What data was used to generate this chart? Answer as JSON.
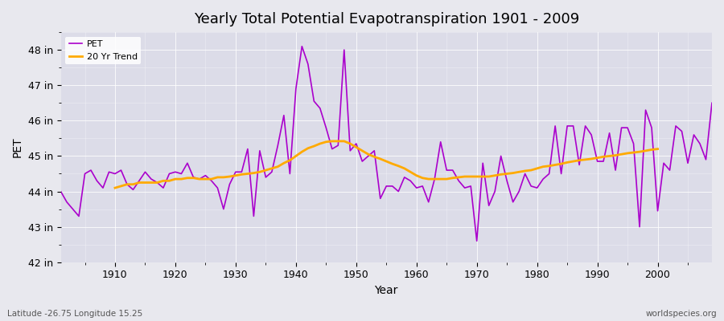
{
  "title": "Yearly Total Potential Evapotranspiration 1901 - 2009",
  "xlabel": "Year",
  "ylabel": "PET",
  "bg_color": "#e8e8ee",
  "plot_bg_color": "#dcdce8",
  "pet_color": "#aa00cc",
  "trend_color": "#ffaa00",
  "ylim": [
    42,
    48.5
  ],
  "yticks": [
    42,
    43,
    44,
    45,
    46,
    47,
    48
  ],
  "ytick_labels": [
    "42 in",
    "43 in",
    "44 in",
    "45 in",
    "46 in",
    "47 in",
    "48 in"
  ],
  "footer_left": "Latitude -26.75 Longitude 15.25",
  "footer_right": "worldspecies.org",
  "years": [
    1901,
    1902,
    1903,
    1904,
    1905,
    1906,
    1907,
    1908,
    1909,
    1910,
    1911,
    1912,
    1913,
    1914,
    1915,
    1916,
    1917,
    1918,
    1919,
    1920,
    1921,
    1922,
    1923,
    1924,
    1925,
    1926,
    1927,
    1928,
    1929,
    1930,
    1931,
    1932,
    1933,
    1934,
    1935,
    1936,
    1937,
    1938,
    1939,
    1940,
    1941,
    1942,
    1943,
    1944,
    1945,
    1946,
    1947,
    1948,
    1949,
    1950,
    1951,
    1952,
    1953,
    1954,
    1955,
    1956,
    1957,
    1958,
    1959,
    1960,
    1961,
    1962,
    1963,
    1964,
    1965,
    1966,
    1967,
    1968,
    1969,
    1970,
    1971,
    1972,
    1973,
    1974,
    1975,
    1976,
    1977,
    1978,
    1979,
    1980,
    1981,
    1982,
    1983,
    1984,
    1985,
    1986,
    1987,
    1988,
    1989,
    1990,
    1991,
    1992,
    1993,
    1994,
    1995,
    1996,
    1997,
    1998,
    1999,
    2000,
    2001,
    2002,
    2003,
    2004,
    2005,
    2006,
    2007,
    2008,
    2009
  ],
  "pet": [
    44.0,
    43.7,
    43.5,
    43.3,
    44.5,
    44.6,
    44.3,
    44.1,
    44.55,
    44.5,
    44.6,
    44.2,
    44.05,
    44.3,
    44.55,
    44.35,
    44.25,
    44.1,
    44.5,
    44.55,
    44.5,
    44.8,
    44.4,
    44.35,
    44.45,
    44.3,
    44.1,
    43.5,
    44.2,
    44.55,
    44.55,
    45.2,
    43.3,
    45.15,
    44.4,
    44.55,
    45.3,
    46.15,
    44.5,
    46.9,
    48.1,
    47.6,
    46.55,
    46.35,
    45.8,
    45.2,
    45.3,
    48.0,
    45.15,
    45.35,
    44.85,
    45.0,
    45.15,
    43.8,
    44.15,
    44.15,
    44.0,
    44.4,
    44.3,
    44.1,
    44.15,
    43.7,
    44.35,
    45.4,
    44.6,
    44.6,
    44.3,
    44.1,
    44.15,
    42.6,
    44.8,
    43.6,
    44.0,
    45.0,
    44.3,
    43.7,
    44.0,
    44.5,
    44.15,
    44.1,
    44.35,
    44.5,
    45.85,
    44.5,
    45.85,
    45.85,
    44.75,
    45.85,
    45.6,
    44.85,
    44.85,
    45.65,
    44.6,
    45.8,
    45.8,
    45.35,
    43.0,
    46.3,
    45.8,
    43.45,
    44.8,
    44.6,
    45.85,
    45.7,
    44.8,
    45.6,
    45.35,
    44.9,
    46.5
  ],
  "trend": [
    null,
    null,
    null,
    null,
    null,
    null,
    null,
    null,
    null,
    44.1,
    44.15,
    44.2,
    44.2,
    44.25,
    44.25,
    44.25,
    44.25,
    44.3,
    44.3,
    44.35,
    44.35,
    44.38,
    44.38,
    44.35,
    44.35,
    44.35,
    44.4,
    44.4,
    44.42,
    44.45,
    44.48,
    44.5,
    44.52,
    44.55,
    44.6,
    44.65,
    44.7,
    44.8,
    44.88,
    45.0,
    45.12,
    45.22,
    45.28,
    45.35,
    45.4,
    45.42,
    45.42,
    45.42,
    45.35,
    45.25,
    45.15,
    45.05,
    44.98,
    44.92,
    44.85,
    44.78,
    44.72,
    44.65,
    44.55,
    44.45,
    44.38,
    44.35,
    44.35,
    44.35,
    44.35,
    44.38,
    44.4,
    44.42,
    44.42,
    44.42,
    44.42,
    44.42,
    44.45,
    44.48,
    44.5,
    44.52,
    44.55,
    44.58,
    44.6,
    44.65,
    44.7,
    44.72,
    44.75,
    44.78,
    44.82,
    44.85,
    44.88,
    44.9,
    44.92,
    44.95,
    44.98,
    45.0,
    45.02,
    45.05,
    45.08,
    45.1,
    45.12,
    45.15,
    45.18,
    45.2,
    null,
    null,
    null,
    null,
    null,
    null,
    null,
    null,
    null
  ]
}
